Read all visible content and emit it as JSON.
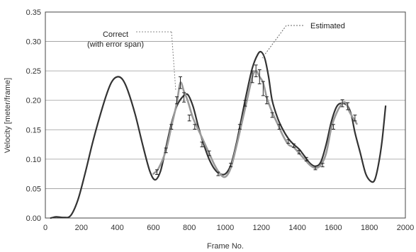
{
  "chart_data": {
    "type": "line",
    "xlabel": "Frame No.",
    "ylabel": "Velocity [meter/frame]",
    "xlim": [
      0,
      2000
    ],
    "ylim": [
      0,
      0.35
    ],
    "xticks": [
      "0",
      "200",
      "400",
      "600",
      "800",
      "1000",
      "1200",
      "1400",
      "1600",
      "1800",
      "2000"
    ],
    "yticks": [
      "0.00",
      "0.05",
      "0.10",
      "0.15",
      "0.20",
      "0.25",
      "0.30",
      "0.35"
    ],
    "grid": "horizontal",
    "annotations": {
      "correct_line1": "Correct",
      "correct_line2": "(with error span)",
      "estimated": "Estimated"
    },
    "series": [
      {
        "role": "estimated",
        "color": "#333333",
        "x": [
          30,
          60,
          100,
          140,
          180,
          220,
          260,
          300,
          340,
          370,
          400,
          430,
          460,
          500,
          540,
          580,
          610,
          640,
          670,
          700,
          730,
          760,
          790,
          820,
          850,
          880,
          910,
          940,
          970,
          1000,
          1030,
          1060,
          1090,
          1120,
          1150,
          1180,
          1200,
          1220,
          1240,
          1260,
          1290,
          1320,
          1350,
          1380,
          1410,
          1440,
          1470,
          1500,
          1530,
          1560,
          1590,
          1620,
          1650,
          1680,
          1700,
          1720,
          1750,
          1780,
          1810,
          1830,
          1850,
          1870,
          1890
        ],
        "y": [
          0.0,
          0.002,
          0.001,
          0.004,
          0.03,
          0.075,
          0.125,
          0.17,
          0.21,
          0.232,
          0.24,
          0.235,
          0.215,
          0.175,
          0.125,
          0.08,
          0.065,
          0.08,
          0.12,
          0.16,
          0.19,
          0.205,
          0.21,
          0.19,
          0.155,
          0.125,
          0.1,
          0.083,
          0.075,
          0.075,
          0.09,
          0.125,
          0.17,
          0.215,
          0.255,
          0.278,
          0.282,
          0.27,
          0.24,
          0.2,
          0.17,
          0.15,
          0.135,
          0.125,
          0.117,
          0.105,
          0.093,
          0.088,
          0.095,
          0.125,
          0.165,
          0.19,
          0.195,
          0.19,
          0.175,
          0.145,
          0.11,
          0.075,
          0.062,
          0.065,
          0.09,
          0.13,
          0.19
        ]
      },
      {
        "role": "correct",
        "color": "#9a9a9a",
        "x": [
          600,
          630,
          670,
          700,
          730,
          750,
          770,
          790,
          820,
          850,
          880,
          910,
          940,
          970,
          1000,
          1030,
          1060,
          1090,
          1120,
          1150,
          1170,
          1190,
          1210,
          1230,
          1260,
          1290,
          1320,
          1350,
          1380,
          1410,
          1440,
          1470,
          1500,
          1530,
          1560,
          1590,
          1620,
          1650,
          1670,
          1690,
          1710,
          1730
        ],
        "y": [
          0.075,
          0.085,
          0.115,
          0.155,
          0.195,
          0.23,
          0.215,
          0.2,
          0.17,
          0.15,
          0.13,
          0.11,
          0.09,
          0.075,
          0.07,
          0.085,
          0.12,
          0.16,
          0.2,
          0.24,
          0.25,
          0.24,
          0.23,
          0.205,
          0.18,
          0.16,
          0.14,
          0.125,
          0.12,
          0.11,
          0.1,
          0.09,
          0.085,
          0.09,
          0.11,
          0.155,
          0.18,
          0.195,
          0.195,
          0.18,
          0.17,
          0.16
        ]
      }
    ],
    "error_bars": {
      "x": [
        620,
        670,
        700,
        730,
        750,
        770,
        800,
        830,
        870,
        910,
        960,
        1030,
        1080,
        1110,
        1150,
        1170,
        1190,
        1210,
        1230,
        1260,
        1300,
        1350,
        1380,
        1410,
        1450,
        1500,
        1540,
        1600,
        1650,
        1680,
        1720
      ],
      "y": [
        0.078,
        0.115,
        0.155,
        0.2,
        0.23,
        0.205,
        0.17,
        0.155,
        0.125,
        0.11,
        0.075,
        0.09,
        0.155,
        0.195,
        0.24,
        0.25,
        0.24,
        0.22,
        0.2,
        0.175,
        0.155,
        0.13,
        0.123,
        0.112,
        0.1,
        0.085,
        0.09,
        0.155,
        0.195,
        0.19,
        0.17
      ],
      "err": [
        0.004,
        0.004,
        0.004,
        0.006,
        0.01,
        0.008,
        0.005,
        0.004,
        0.004,
        0.004,
        0.003,
        0.003,
        0.004,
        0.005,
        0.01,
        0.01,
        0.012,
        0.012,
        0.006,
        0.004,
        0.004,
        0.003,
        0.003,
        0.003,
        0.003,
        0.003,
        0.003,
        0.004,
        0.006,
        0.006,
        0.005
      ]
    }
  }
}
